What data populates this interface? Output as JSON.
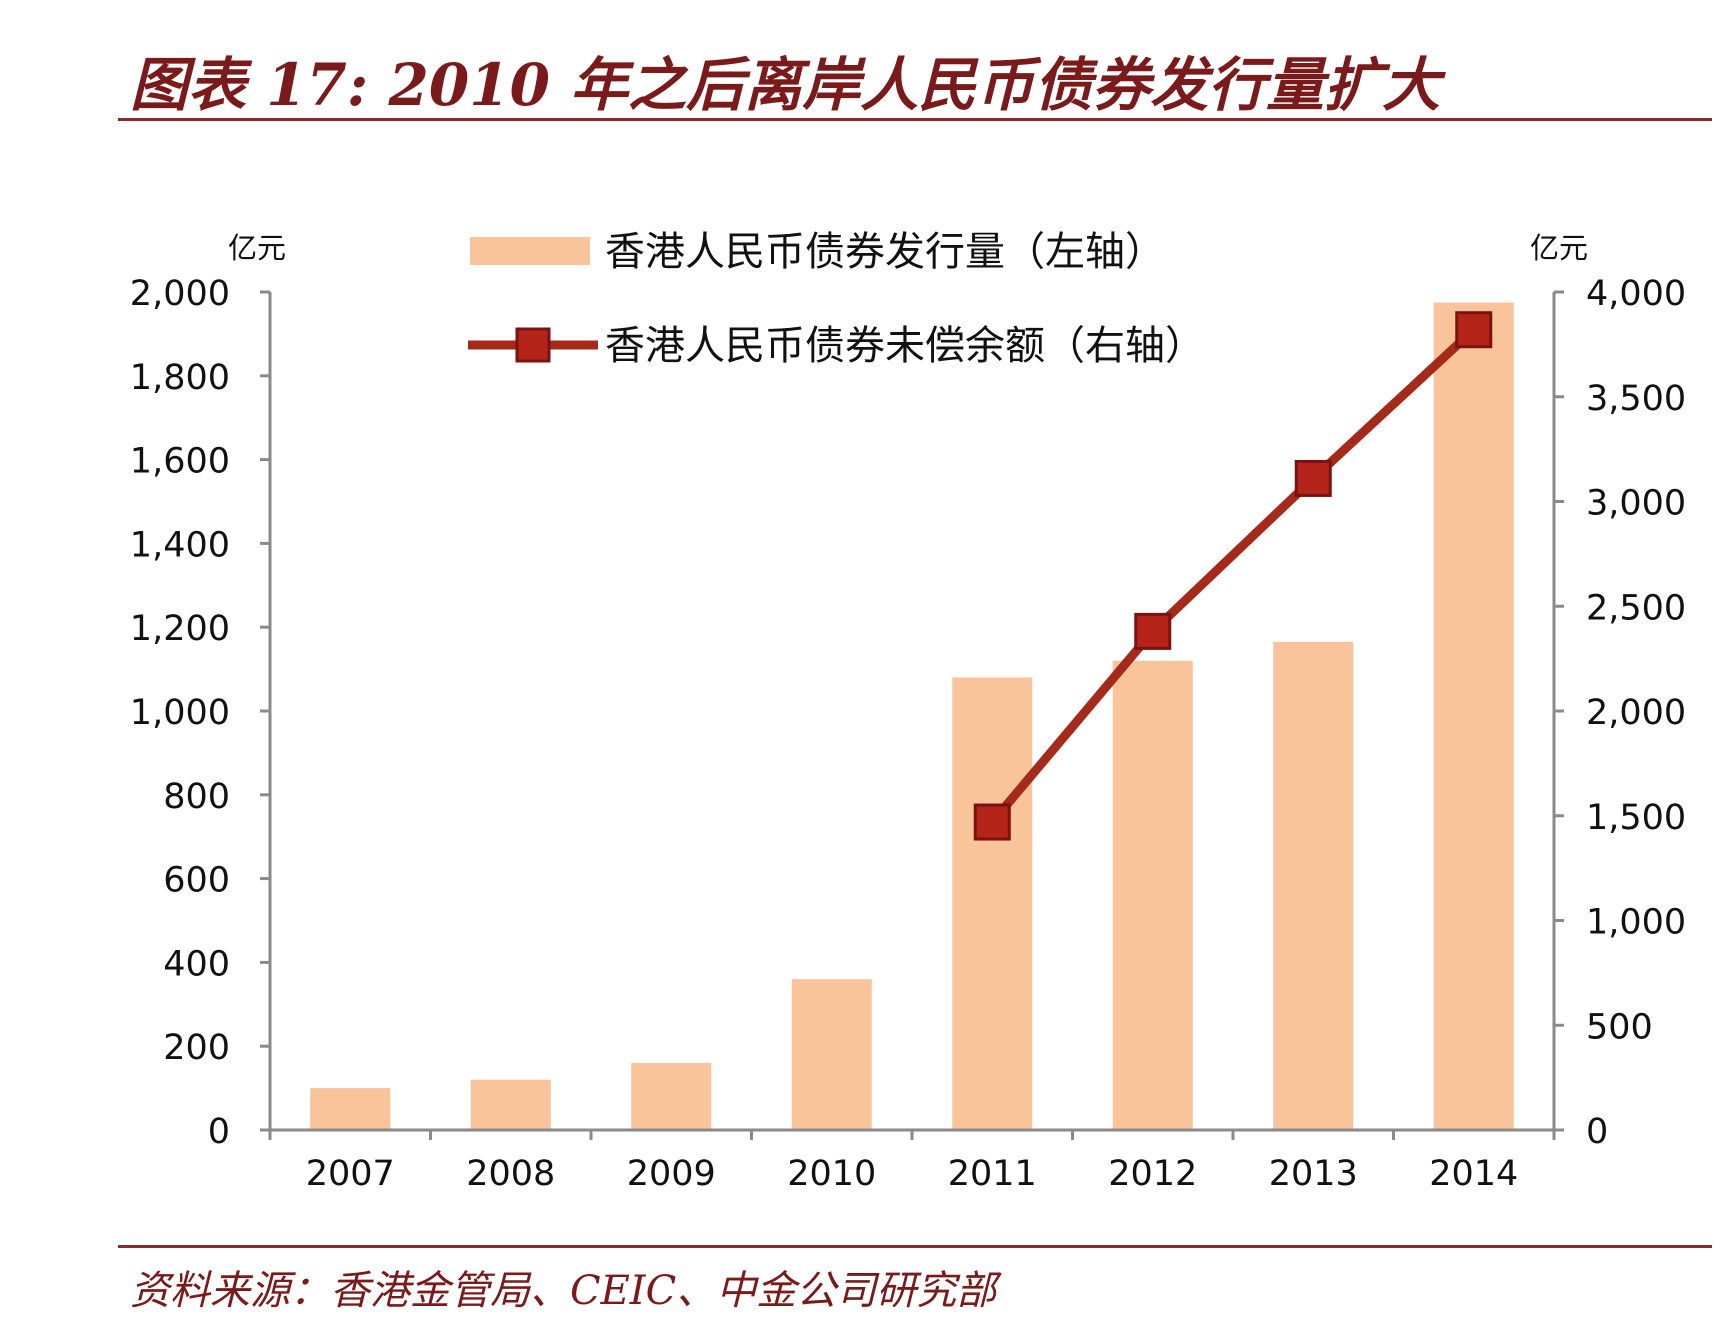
{
  "title": "图表 17: 2010 年之后离岸人民币债券发行量扩大",
  "source": "资料来源：香港金管局、CEIC、中金公司研究部",
  "chart_data": {
    "type": "bar",
    "categories": [
      "2007",
      "2008",
      "2009",
      "2010",
      "2011",
      "2012",
      "2013",
      "2014"
    ],
    "series": [
      {
        "name": "香港人民币债券发行量（左轴）",
        "type": "bar",
        "axis": "left",
        "color": "#f9c49a",
        "values": [
          100,
          120,
          160,
          360,
          1080,
          1120,
          1165,
          1975
        ]
      },
      {
        "name": "香港人民币债券未偿余额（右轴）",
        "type": "line",
        "axis": "right",
        "color": "#a52a1a",
        "marker_color": "#b52418",
        "values": [
          null,
          null,
          null,
          null,
          1470,
          2380,
          3110,
          3820
        ]
      }
    ],
    "left_axis": {
      "unit": "亿元",
      "range": [
        0,
        2000
      ],
      "ticks": [
        "0",
        "200",
        "400",
        "600",
        "800",
        "1,000",
        "1,200",
        "1,400",
        "1,600",
        "1,800",
        "2,000"
      ],
      "tick_values": [
        0,
        200,
        400,
        600,
        800,
        1000,
        1200,
        1400,
        1600,
        1800,
        2000
      ]
    },
    "right_axis": {
      "unit": "亿元",
      "range": [
        0,
        4000
      ],
      "ticks": [
        "0",
        "500",
        "1,000",
        "1,500",
        "2,000",
        "2,500",
        "3,000",
        "3,500",
        "4,000"
      ],
      "tick_values": [
        0,
        500,
        1000,
        1500,
        2000,
        2500,
        3000,
        3500,
        4000
      ]
    },
    "grid": false,
    "legend_position": "top"
  }
}
